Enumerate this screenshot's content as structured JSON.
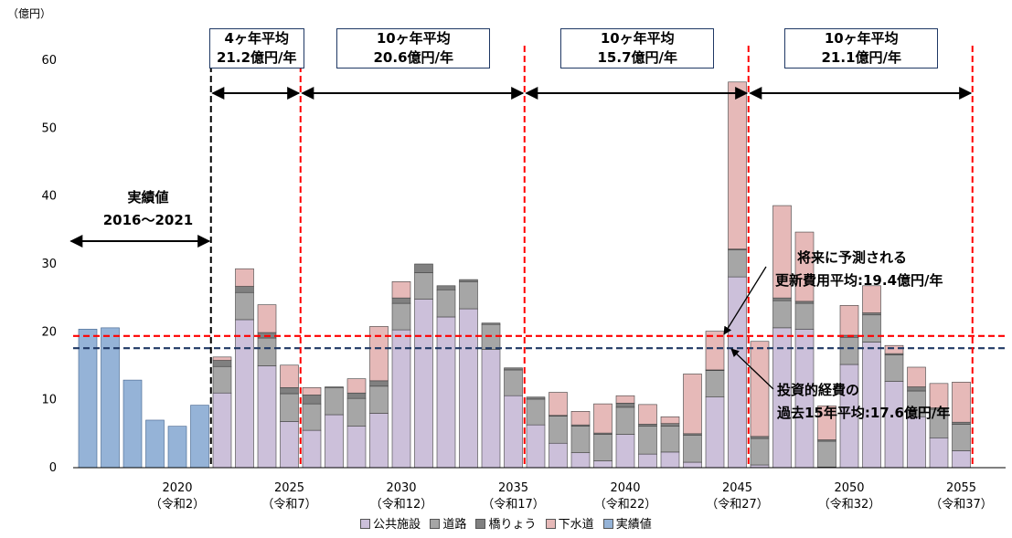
{
  "chart_data": {
    "type": "bar",
    "stacked": true,
    "unit_label": "（億円）",
    "ylim": [
      0,
      60
    ],
    "y_ticks": [
      0,
      10,
      20,
      30,
      40,
      50,
      60
    ],
    "x_labels": [
      {
        "year": 2020,
        "line1": "2020",
        "line2": "（令和2）"
      },
      {
        "year": 2025,
        "line1": "2025",
        "line2": "（令和7）"
      },
      {
        "year": 2030,
        "line1": "2030",
        "line2": "（令和12）"
      },
      {
        "year": 2035,
        "line1": "2035",
        "line2": "（令和17）"
      },
      {
        "year": 2040,
        "line1": "2040",
        "line2": "（令和22）"
      },
      {
        "year": 2045,
        "line1": "2045",
        "line2": "（令和27）"
      },
      {
        "year": 2050,
        "line1": "2050",
        "line2": "（令和32）"
      },
      {
        "year": 2055,
        "line1": "2055",
        "line2": "（令和37）"
      }
    ],
    "colors": {
      "public": "#ccc0da",
      "road": "#a6a6a6",
      "bridge": "#808080",
      "sewer": "#e6b9b8",
      "actual": "#95b3d7"
    },
    "legend": [
      {
        "key": "public",
        "label": "公共施設"
      },
      {
        "key": "road",
        "label": "道路"
      },
      {
        "key": "bridge",
        "label": "橋りょう"
      },
      {
        "key": "sewer",
        "label": "下水道"
      },
      {
        "key": "actual",
        "label": "実績値"
      }
    ],
    "actuals": [
      {
        "year": 2016,
        "value": 20.4
      },
      {
        "year": 2017,
        "value": 20.6
      },
      {
        "year": 2018,
        "value": 12.9
      },
      {
        "year": 2019,
        "value": 7.0
      },
      {
        "year": 2020,
        "value": 6.1
      },
      {
        "year": 2021,
        "value": 9.2
      }
    ],
    "forecast": [
      {
        "year": 2022,
        "public": 11.0,
        "road": 3.9,
        "bridge": 0.9,
        "sewer": 0.5
      },
      {
        "year": 2023,
        "public": 21.8,
        "road": 4.0,
        "bridge": 0.9,
        "sewer": 2.6
      },
      {
        "year": 2024,
        "public": 15.0,
        "road": 4.1,
        "bridge": 0.8,
        "sewer": 4.1
      },
      {
        "year": 2025,
        "public": 6.8,
        "road": 4.1,
        "bridge": 0.9,
        "sewer": 3.3
      },
      {
        "year": 2026,
        "public": 5.5,
        "road": 3.9,
        "bridge": 1.3,
        "sewer": 1.1
      },
      {
        "year": 2027,
        "public": 7.8,
        "road": 4.0,
        "bridge": 0.1,
        "sewer": 0.0
      },
      {
        "year": 2028,
        "public": 6.1,
        "road": 4.1,
        "bridge": 0.8,
        "sewer": 2.1
      },
      {
        "year": 2029,
        "public": 8.0,
        "road": 4.0,
        "bridge": 0.8,
        "sewer": 8.0
      },
      {
        "year": 2030,
        "public": 20.3,
        "road": 3.9,
        "bridge": 0.8,
        "sewer": 2.4
      },
      {
        "year": 2031,
        "public": 24.8,
        "road": 3.9,
        "bridge": 1.3,
        "sewer": 0.0
      },
      {
        "year": 2032,
        "public": 22.2,
        "road": 4.0,
        "bridge": 0.6,
        "sewer": 0.0
      },
      {
        "year": 2033,
        "public": 23.4,
        "road": 4.0,
        "bridge": 0.3,
        "sewer": 0.0
      },
      {
        "year": 2034,
        "public": 17.4,
        "road": 3.7,
        "bridge": 0.2,
        "sewer": 0.0
      },
      {
        "year": 2035,
        "public": 10.6,
        "road": 3.8,
        "bridge": 0.3,
        "sewer": 0.0
      },
      {
        "year": 2036,
        "public": 6.3,
        "road": 3.8,
        "bridge": 0.3,
        "sewer": 0.0
      },
      {
        "year": 2037,
        "public": 3.6,
        "road": 4.0,
        "bridge": 0.1,
        "sewer": 3.4
      },
      {
        "year": 2038,
        "public": 2.2,
        "road": 3.9,
        "bridge": 0.2,
        "sewer": 2.0
      },
      {
        "year": 2039,
        "public": 1.0,
        "road": 3.9,
        "bridge": 0.2,
        "sewer": 4.3
      },
      {
        "year": 2040,
        "public": 4.9,
        "road": 4.0,
        "bridge": 0.6,
        "sewer": 1.1
      },
      {
        "year": 2041,
        "public": 2.0,
        "road": 4.1,
        "bridge": 0.3,
        "sewer": 2.9
      },
      {
        "year": 2042,
        "public": 2.3,
        "road": 3.8,
        "bridge": 0.4,
        "sewer": 1.0
      },
      {
        "year": 2043,
        "public": 0.8,
        "road": 4.0,
        "bridge": 0.2,
        "sewer": 8.8
      },
      {
        "year": 2044,
        "public": 10.4,
        "road": 3.9,
        "bridge": 0.1,
        "sewer": 5.7
      },
      {
        "year": 2045,
        "public": 28.1,
        "road": 4.0,
        "bridge": 0.1,
        "sewer": 24.6
      },
      {
        "year": 2046,
        "public": 0.4,
        "road": 3.9,
        "bridge": 0.3,
        "sewer": 14.0
      },
      {
        "year": 2047,
        "public": 20.6,
        "road": 4.0,
        "bridge": 0.4,
        "sewer": 13.6
      },
      {
        "year": 2048,
        "public": 20.4,
        "road": 3.8,
        "bridge": 0.3,
        "sewer": 10.2
      },
      {
        "year": 2049,
        "public": 0.1,
        "road": 3.8,
        "bridge": 0.2,
        "sewer": 5.0
      },
      {
        "year": 2050,
        "public": 15.2,
        "road": 4.0,
        "bridge": 0.3,
        "sewer": 4.4
      },
      {
        "year": 2051,
        "public": 18.5,
        "road": 4.0,
        "bridge": 0.3,
        "sewer": 4.0
      },
      {
        "year": 2052,
        "public": 12.7,
        "road": 3.9,
        "bridge": 0.2,
        "sewer": 1.2
      },
      {
        "year": 2053,
        "public": 7.5,
        "road": 3.8,
        "bridge": 0.6,
        "sewer": 2.9
      },
      {
        "year": 2054,
        "public": 4.4,
        "road": 4.2,
        "bridge": 0.2,
        "sewer": 3.6
      },
      {
        "year": 2055,
        "public": 2.5,
        "road": 3.9,
        "bridge": 0.3,
        "sewer": 5.9
      }
    ],
    "reference_lines": [
      {
        "name": "forecast-average-line",
        "value": 19.4,
        "color": "#ff0000",
        "style": "dashed"
      },
      {
        "name": "investment-average-line",
        "value": 17.6,
        "color": "#1f3864",
        "style": "dashed"
      }
    ],
    "dividers": [
      {
        "name": "divider-2021",
        "year": 2021.5,
        "color": "#000000"
      },
      {
        "name": "divider-2025",
        "year": 2025.5,
        "color": "#ff0000"
      },
      {
        "name": "divider-2035",
        "year": 2035.5,
        "color": "#ff0000"
      },
      {
        "name": "divider-2045",
        "year": 2045.5,
        "color": "#ff0000"
      },
      {
        "name": "divider-2055",
        "year": 2055.5,
        "color": "#ff0000"
      }
    ],
    "period_boxes": [
      {
        "from": 2021.5,
        "to": 2025.5,
        "line1": "4ヶ年平均",
        "line2": "21.2億円/年"
      },
      {
        "from": 2025.5,
        "to": 2035.5,
        "line1": "10ヶ年平均",
        "line2": "20.6億円/年"
      },
      {
        "from": 2035.5,
        "to": 2045.5,
        "line1": "10ヶ年平均",
        "line2": "15.7億円/年"
      },
      {
        "from": 2045.5,
        "to": 2055.5,
        "line1": "10ヶ年平均",
        "line2": "21.1億円/年"
      }
    ],
    "actual_span": {
      "from": 2015.5,
      "to": 2021.5
    },
    "annotations": {
      "actual": {
        "line1": "実績値",
        "line2": "2016～2021"
      },
      "forecast": {
        "line1": "将来に予測される",
        "line2": "更新費用平均:19.4億円/年"
      },
      "investment": {
        "line1": "投資的経費の",
        "line2": "過去15年平均:17.6億円/年"
      }
    }
  }
}
